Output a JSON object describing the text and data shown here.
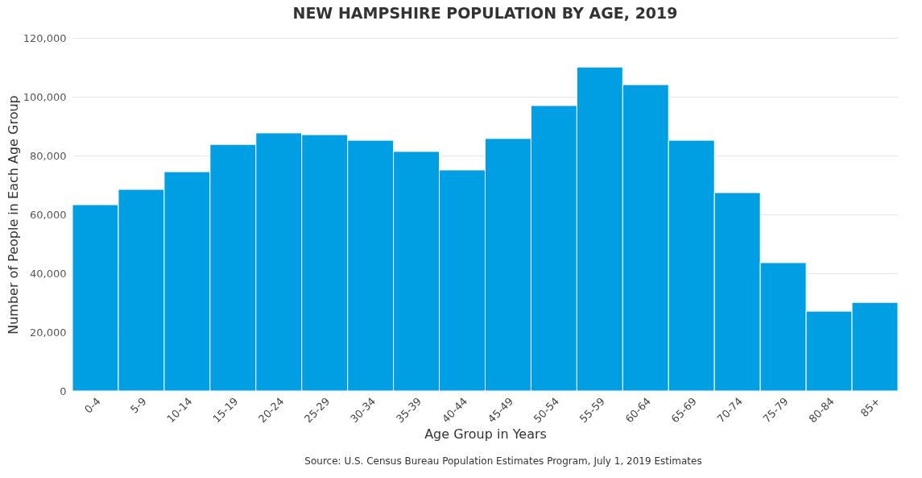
{
  "chart_data": {
    "type": "bar",
    "title": "NEW HAMPSHIRE POPULATION BY AGE, 2019",
    "xlabel": "Age Group in Years",
    "ylabel": "Number of People in Each Age Group",
    "categories": [
      "0-4",
      "5-9",
      "10-14",
      "15-19",
      "20-24",
      "25-29",
      "30-34",
      "35-39",
      "40-44",
      "45-49",
      "50-54",
      "55-59",
      "60-64",
      "65-69",
      "70-74",
      "75-79",
      "80-84",
      "85+"
    ],
    "values": [
      63300,
      68500,
      74500,
      83800,
      87700,
      87100,
      85200,
      81400,
      75100,
      85800,
      97000,
      110100,
      104100,
      85200,
      67400,
      43600,
      27100,
      30100
    ],
    "color": "#009fe3",
    "ylim": [
      0,
      120000
    ],
    "yticks": [
      0,
      {
        "value": 20000,
        "label": "20,000"
      },
      {
        "value": 40000,
        "label": "40,000"
      },
      {
        "value": 60000,
        "label": "60,000"
      },
      {
        "value": 80000,
        "label": "80,000"
      },
      {
        "value": 100000,
        "label": "100,000"
      },
      {
        "value": 120000,
        "label": "120,000"
      }
    ],
    "grid": "y",
    "annotations": [
      "Source: U.S. Census Bureau Population Estimates Program, July 1, 2019 Estimates"
    ]
  }
}
